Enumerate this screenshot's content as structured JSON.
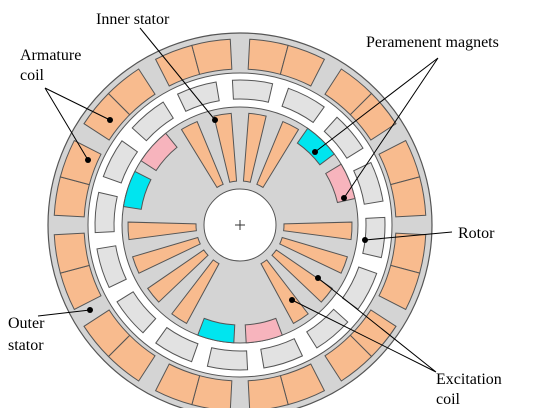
{
  "labels": {
    "inner_stator": "Inner stator",
    "permanent_magnets": "Peramenent magnets",
    "armature_coil": [
      "Armature",
      "coil"
    ],
    "rotor": "Rotor",
    "outer_stator": [
      "Outer",
      "stator"
    ],
    "excitation_coil": [
      "Excitation",
      "coil"
    ]
  }
}
